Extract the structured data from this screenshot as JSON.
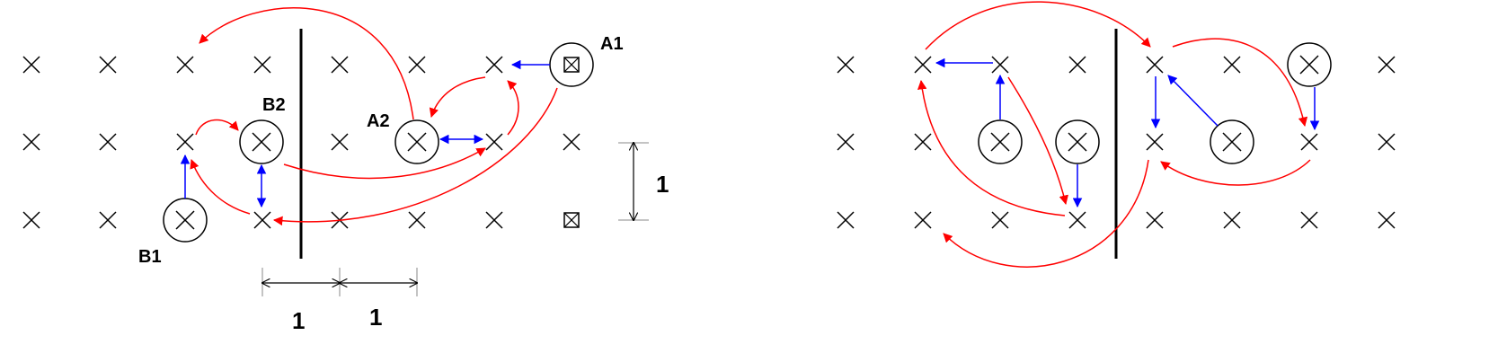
{
  "labels": {
    "a1": "A1",
    "a2": "A2",
    "b1": "B1",
    "b2": "B2"
  },
  "dimensions": {
    "horizontal_1": "1",
    "horizontal_2": "1",
    "vertical": "1"
  },
  "colors": {
    "grid_mark": "#000000",
    "barrier": "#000000",
    "red_arrow": "#ff0000",
    "blue_arrow": "#0000ff"
  }
}
